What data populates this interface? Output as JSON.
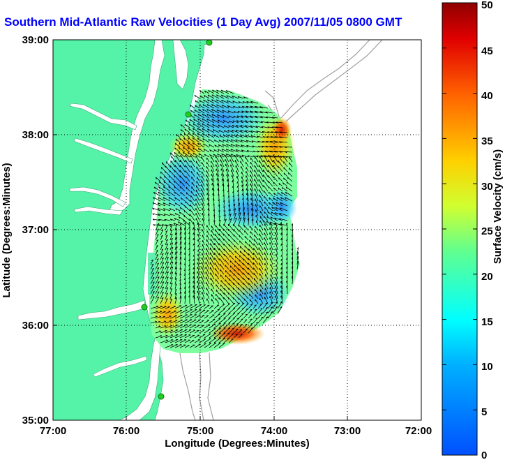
{
  "title": "Southern Mid-Atlantic Raw Velocities (1 Day Avg) 2007/11/05 0800 GMT",
  "map": {
    "xlabel": "Longitude (Degrees:Minutes)",
    "ylabel": "Latitude (Degrees:Minutes)",
    "x_ticks": [
      "77:00",
      "76:00",
      "75:00",
      "74:00",
      "73:00",
      "72:00"
    ],
    "y_ticks": [
      "39:00",
      "38:00",
      "37:00",
      "36:00",
      "35:00"
    ],
    "lon_range": [
      -77,
      -72
    ],
    "lat_range": [
      35,
      39
    ],
    "grid": "dotted",
    "land_color": "#55f3a8",
    "ocean_color": "#ffffff",
    "bathymetry_color": "#a0a0a0"
  },
  "colorbar": {
    "label": "Surface Velocity (cm/s)",
    "ticks": [
      "50",
      "45",
      "40",
      "35",
      "30",
      "25",
      "20",
      "15",
      "10",
      "5",
      "0"
    ],
    "min": 0,
    "max": 50,
    "colormap": "jet"
  },
  "stations": {
    "color": "#22cc22"
  }
}
